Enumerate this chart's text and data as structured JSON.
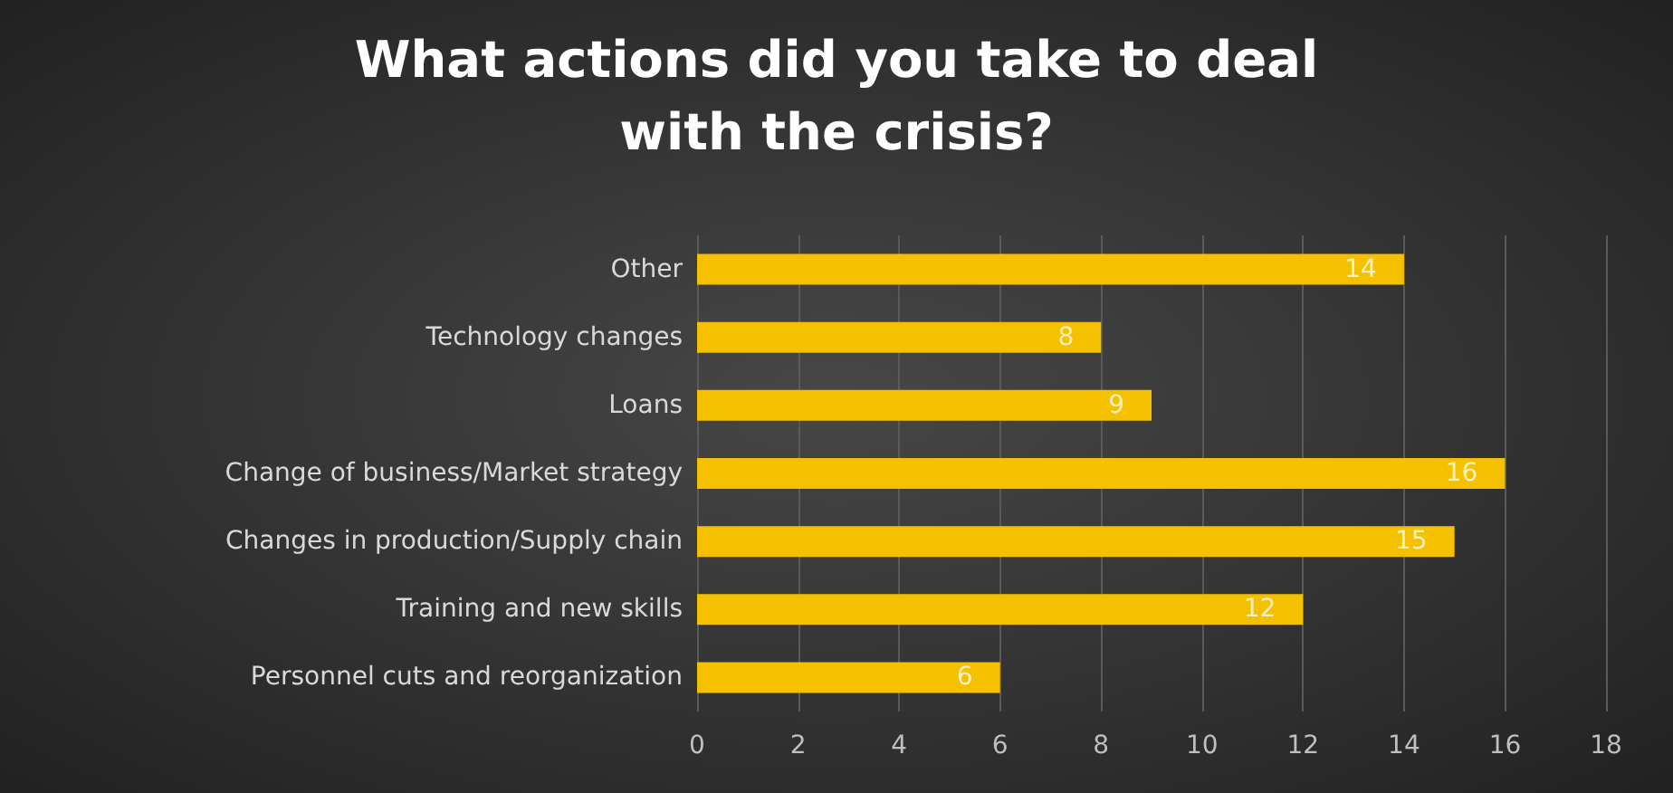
{
  "chart_data": {
    "type": "bar",
    "orientation": "horizontal",
    "title": "What actions did you take to deal\nwith the crisis?",
    "categories": [
      "Other",
      "Technology changes",
      "Loans",
      "Change of business/Market strategy",
      "Changes in production/Supply chain",
      "Training and new skills",
      "Personnel cuts and reorganization"
    ],
    "values": [
      14,
      8,
      9,
      16,
      15,
      12,
      6
    ],
    "color": "#f5c000",
    "xlim": [
      0,
      18
    ],
    "xticks": [
      0,
      2,
      4,
      6,
      8,
      10,
      12,
      14,
      16,
      18
    ],
    "grid": "x",
    "data_labels": true
  }
}
